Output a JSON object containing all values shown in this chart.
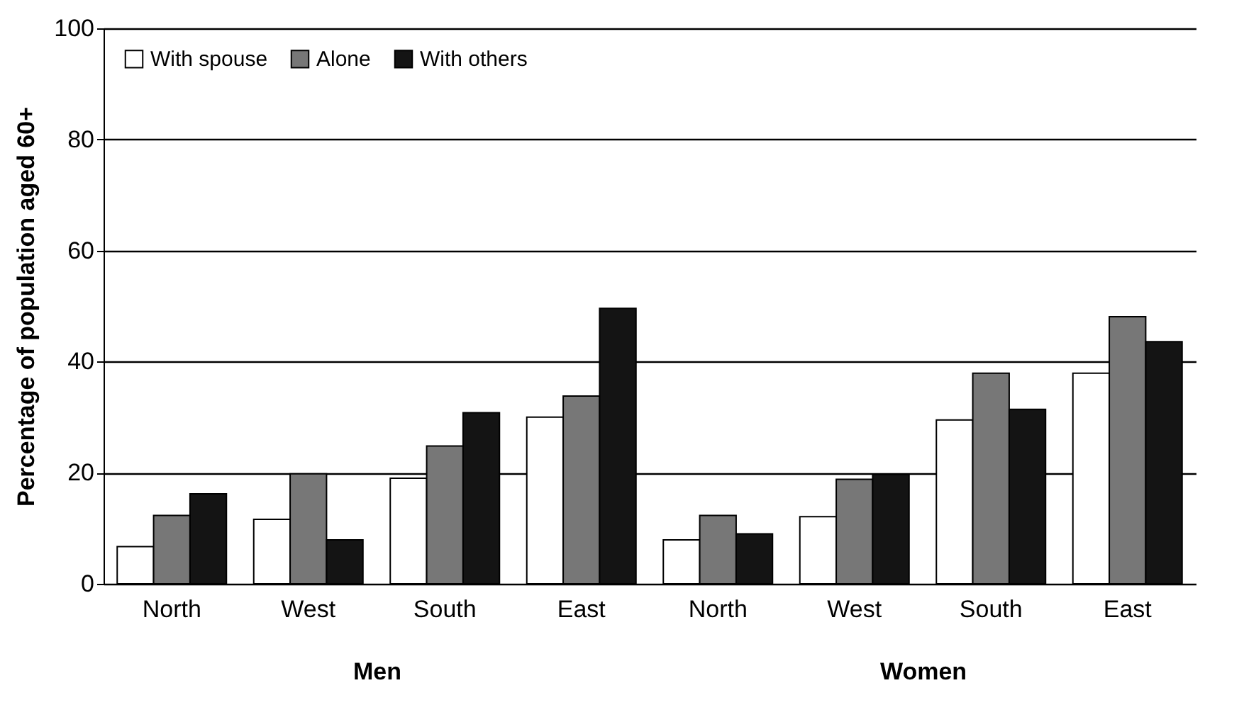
{
  "chart_data": [
    {
      "type": "bar",
      "xlabel": "Men",
      "ylabel": "Percentage of population aged 60+",
      "categories": [
        "North",
        "West",
        "South",
        "East"
      ],
      "series": [
        {
          "name": "With spouse",
          "color": "#ffffff",
          "values": [
            6.7,
            11.6,
            19.0,
            30.0
          ]
        },
        {
          "name": "Alone",
          "color": "#777777",
          "values": [
            12.3,
            19.8,
            24.8,
            33.8
          ]
        },
        {
          "name": "With others",
          "color": "#141414",
          "values": [
            16.2,
            7.9,
            30.8,
            49.6
          ]
        }
      ],
      "ylim": [
        0,
        100
      ],
      "yticks": [
        0,
        20,
        40,
        60,
        80,
        100
      ],
      "grid": "y",
      "legend": "top left"
    },
    {
      "type": "bar",
      "xlabel": "Women",
      "categories": [
        "North",
        "West",
        "South",
        "East"
      ],
      "series": [
        {
          "name": "With spouse",
          "color": "#ffffff",
          "values": [
            7.9,
            12.1,
            29.5,
            37.9
          ]
        },
        {
          "name": "Alone",
          "color": "#777777",
          "values": [
            12.3,
            18.8,
            37.9,
            48.1
          ]
        },
        {
          "name": "With others",
          "color": "#141414",
          "values": [
            9.0,
            19.7,
            31.4,
            43.6
          ]
        }
      ],
      "ylim": [
        0,
        100
      ],
      "yticks": [
        0,
        20,
        40,
        60,
        80,
        100
      ],
      "grid": "y",
      "tick_labels": "x"
    }
  ]
}
